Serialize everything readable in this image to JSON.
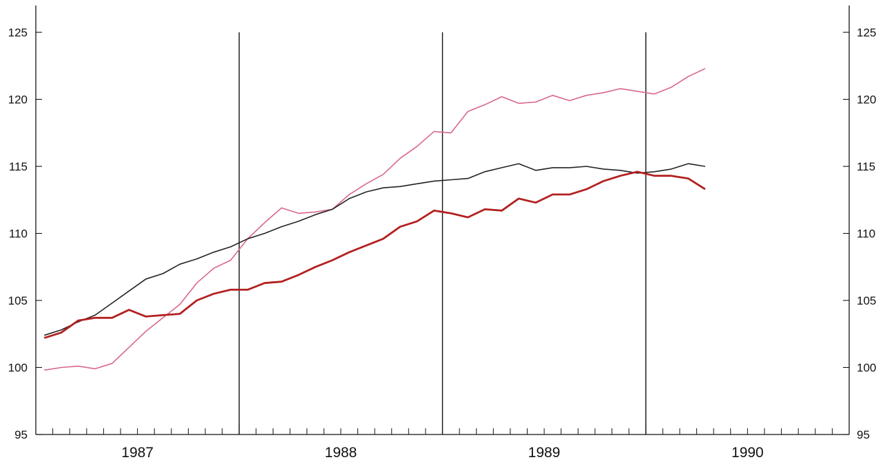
{
  "chart_data": {
    "type": "line",
    "title": "",
    "xlabel": "",
    "ylabel": "",
    "ylim": [
      95,
      127
    ],
    "y_ticks": [
      95,
      100,
      105,
      110,
      115,
      120,
      125
    ],
    "x_year_labels": [
      "1987",
      "1988",
      "1989",
      "1990"
    ],
    "year_separators": [
      "1988",
      "1989",
      "1990"
    ],
    "grid": false,
    "legend": "none",
    "x": [
      "1987-01",
      "1987-02",
      "1987-03",
      "1987-04",
      "1987-05",
      "1987-06",
      "1987-07",
      "1987-08",
      "1987-09",
      "1987-10",
      "1987-11",
      "1987-12",
      "1988-01",
      "1988-02",
      "1988-03",
      "1988-04",
      "1988-05",
      "1988-06",
      "1988-07",
      "1988-08",
      "1988-09",
      "1988-10",
      "1988-11",
      "1988-12",
      "1989-01",
      "1989-02",
      "1989-03",
      "1989-04",
      "1989-05",
      "1989-06",
      "1989-07",
      "1989-08",
      "1989-09",
      "1989-10",
      "1989-11",
      "1989-12",
      "1990-01",
      "1990-02",
      "1990-03",
      "1990-04"
    ],
    "series": [
      {
        "color": "#d9668a",
        "values": [
          99.8,
          100.0,
          100.1,
          99.9,
          100.3,
          101.5,
          102.7,
          103.7,
          104.7,
          106.3,
          107.4,
          108.0,
          109.6,
          110.8,
          111.9,
          111.5,
          111.6,
          111.8,
          112.9,
          113.7,
          114.4,
          115.6,
          116.5,
          117.6,
          117.5,
          119.1,
          119.6,
          120.2,
          119.7,
          119.8,
          120.3,
          119.9,
          120.3,
          120.5,
          120.8,
          120.6,
          120.4,
          120.9,
          121.7,
          122.3
        ]
      },
      {
        "color": "#222222",
        "values": [
          102.4,
          102.8,
          103.4,
          103.9,
          104.8,
          105.7,
          106.6,
          107.0,
          107.7,
          108.1,
          108.6,
          109.0,
          109.6,
          110.0,
          110.5,
          110.9,
          111.4,
          111.8,
          112.6,
          113.1,
          113.4,
          113.5,
          113.7,
          113.9,
          114.0,
          114.1,
          114.6,
          114.9,
          115.2,
          114.7,
          114.9,
          114.9,
          115.0,
          114.8,
          114.7,
          114.5,
          114.6,
          114.8,
          115.2,
          115.0
        ]
      },
      {
        "color": "#b32020",
        "values": [
          102.2,
          102.6,
          103.5,
          103.7,
          103.7,
          104.3,
          103.8,
          103.9,
          104.0,
          105.0,
          105.5,
          105.8,
          105.8,
          106.3,
          106.4,
          106.9,
          107.5,
          108.0,
          108.6,
          109.1,
          109.6,
          110.5,
          110.9,
          111.7,
          111.5,
          111.2,
          111.8,
          111.7,
          112.6,
          112.3,
          112.9,
          112.9,
          113.3,
          113.9,
          114.3,
          114.6,
          114.3,
          114.3,
          114.1,
          113.3
        ]
      }
    ]
  }
}
